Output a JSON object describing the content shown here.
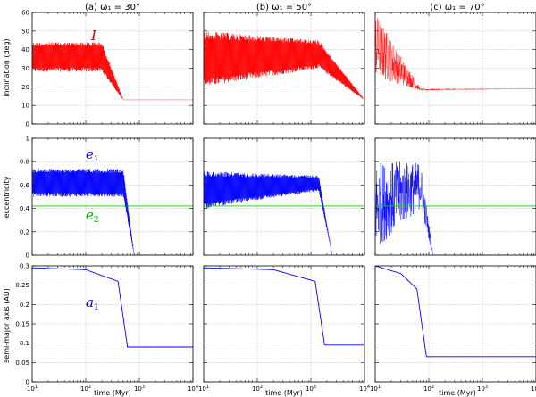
{
  "chart_data": {
    "type": "line",
    "columns": [
      {
        "title": "(a) ω₁ = 30°",
        "collapse_time": 500,
        "final_inc": 13,
        "final_a": 0.09,
        "style": "regular"
      },
      {
        "title": "(b) ω₁ = 50°",
        "collapse_time": 1400,
        "final_inc": 13,
        "final_a": 0.095,
        "style": "regular"
      },
      {
        "title": "(c) ω₁ = 70°",
        "collapse_time": 70,
        "final_inc": 19,
        "final_a": 0.065,
        "style": "chaotic"
      }
    ],
    "rows": [
      {
        "ylabel": "inclination (deg)",
        "ylim": [
          0,
          60
        ],
        "yticks": [
          "0",
          "10",
          "20",
          "30",
          "40",
          "50",
          "60"
        ],
        "ytick_values": [
          0,
          10,
          20,
          30,
          40,
          50,
          60
        ]
      },
      {
        "ylabel": "eccentricity",
        "ylim": [
          0,
          1
        ],
        "yticks": [
          "0",
          "0.2",
          "0.4",
          "0.6",
          "0.8",
          "1"
        ],
        "ytick_values": [
          0,
          0.2,
          0.4,
          0.6,
          0.8,
          1
        ]
      },
      {
        "ylabel": "semi-major axis (AU)",
        "ylim": [
          0,
          0.3
        ],
        "yticks": [
          "0",
          "0.05",
          "0.1",
          "0.15",
          "0.2",
          "0.25",
          "0.3"
        ],
        "ytick_values": [
          0,
          0.05,
          0.1,
          0.15,
          0.2,
          0.25,
          0.3
        ]
      }
    ],
    "xlabel": "time (Myr)",
    "xscale": "log",
    "xlim": [
      10,
      10000
    ],
    "xticks": [
      {
        "base": "10",
        "exp": "1"
      },
      {
        "base": "10",
        "exp": "2"
      },
      {
        "base": "10",
        "exp": "3"
      },
      {
        "base": "10",
        "exp": "4"
      }
    ],
    "series": [
      {
        "name": "I",
        "row": 0,
        "color": "#ff0000",
        "oscillating": true,
        "values_per_column": [
          [
            [
              10,
              28,
              44
            ],
            [
              200,
              28,
              44
            ],
            [
              500,
              13,
              13
            ],
            [
              10000,
              13,
              13
            ]
          ],
          [
            [
              10,
              20,
              50
            ],
            [
              1400,
              30,
              45
            ],
            [
              10000,
              13,
              13
            ]
          ],
          [
            [
              10,
              25,
              60
            ],
            [
              70,
              18,
              19
            ],
            [
              10000,
              19,
              19
            ]
          ]
        ]
      },
      {
        "name": "e₁",
        "row": 1,
        "color": "#0000ff",
        "oscillating": true,
        "values_per_column": [
          [
            [
              10,
              0.5,
              0.74
            ],
            [
              500,
              0.5,
              0.74
            ],
            [
              800,
              0,
              0
            ],
            [
              10000,
              0,
              0
            ]
          ],
          [
            [
              10,
              0.4,
              0.72
            ],
            [
              1400,
              0.55,
              0.68
            ],
            [
              2500,
              0,
              0
            ],
            [
              10000,
              0,
              0
            ]
          ],
          [
            [
              10,
              0.05,
              0.8
            ],
            [
              70,
              0.4,
              0.8
            ],
            [
              120,
              0,
              0
            ],
            [
              10000,
              0,
              0
            ]
          ]
        ]
      },
      {
        "name": "e₂",
        "row": 1,
        "color": "#00d000",
        "oscillating": false,
        "values_per_column": [
          [
            [
              10,
              0.42
            ],
            [
              10000,
              0.42
            ]
          ],
          [
            [
              10,
              0.42
            ],
            [
              10000,
              0.42
            ]
          ],
          [
            [
              10,
              0.42
            ],
            [
              10000,
              0.42
            ]
          ]
        ]
      },
      {
        "name": "a₁",
        "row": 2,
        "color": "#0000ff",
        "oscillating": false,
        "values_per_column": [
          [
            [
              10,
              0.295
            ],
            [
              100,
              0.29
            ],
            [
              400,
              0.26
            ],
            [
              600,
              0.09
            ],
            [
              10000,
              0.09
            ]
          ],
          [
            [
              10,
              0.295
            ],
            [
              200,
              0.29
            ],
            [
              1200,
              0.26
            ],
            [
              1800,
              0.095
            ],
            [
              10000,
              0.095
            ]
          ],
          [
            [
              10,
              0.3
            ],
            [
              30,
              0.28
            ],
            [
              60,
              0.24
            ],
            [
              90,
              0.065
            ],
            [
              10000,
              0.065
            ]
          ]
        ]
      }
    ],
    "curve_labels": [
      {
        "text": "I",
        "sub": "",
        "color": "#cc0000",
        "row": 0
      },
      {
        "text": "e",
        "sub": "1",
        "color": "#0000cc",
        "row": 1
      },
      {
        "text": "e",
        "sub": "2",
        "color": "#00aa00",
        "row": 1
      },
      {
        "text": "a",
        "sub": "1",
        "color": "#0000cc",
        "row": 2
      }
    ]
  }
}
